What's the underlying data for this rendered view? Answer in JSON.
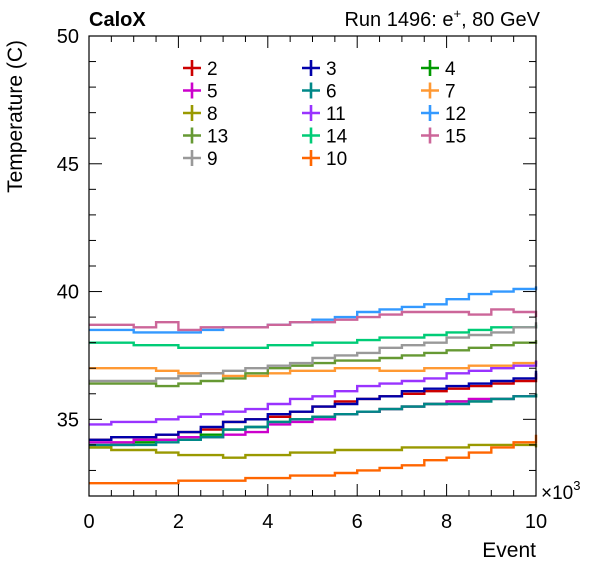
{
  "header": {
    "left": "CaloX",
    "right_prefix": "Run 1496: e",
    "right_sup": "+",
    "right_suffix": ", 80 GeV"
  },
  "chart_data": {
    "type": "line",
    "style": "step",
    "xlabel": "Event",
    "ylabel": "Temperature (C)",
    "x_multiplier": "×10",
    "x_multiplier_exp": "3",
    "xlim": [
      0,
      10
    ],
    "ylim": [
      32,
      50
    ],
    "xticks": [
      0,
      2,
      4,
      6,
      8,
      10
    ],
    "yticks": [
      35,
      40,
      45,
      50
    ],
    "grid": false,
    "legend_position": "top",
    "x": [
      0,
      0.5,
      1,
      1.5,
      2,
      2.5,
      3,
      3.5,
      4,
      4.5,
      5,
      5.5,
      6,
      6.5,
      7,
      7.5,
      8,
      8.5,
      9,
      9.5,
      10
    ],
    "series": [
      {
        "name": "2",
        "color": "#cc0000",
        "values": [
          34.2,
          34.3,
          34.3,
          34.4,
          34.5,
          34.6,
          34.9,
          35.0,
          35.1,
          35.3,
          35.5,
          35.7,
          35.8,
          35.9,
          36.0,
          36.1,
          36.2,
          36.3,
          36.4,
          36.5,
          36.8
        ]
      },
      {
        "name": "3",
        "color": "#0000aa",
        "values": [
          34.2,
          34.3,
          34.3,
          34.4,
          34.5,
          34.7,
          34.9,
          35.0,
          35.2,
          35.3,
          35.5,
          35.6,
          35.8,
          35.9,
          36.1,
          36.2,
          36.3,
          36.4,
          36.5,
          36.6,
          36.9
        ]
      },
      {
        "name": "4",
        "color": "#009900",
        "values": [
          33.9,
          34.0,
          34.1,
          34.2,
          34.3,
          34.4,
          34.6,
          34.7,
          34.9,
          35.0,
          35.1,
          35.2,
          35.3,
          35.4,
          35.5,
          35.6,
          35.7,
          35.7,
          35.8,
          35.9,
          36.0
        ]
      },
      {
        "name": "5",
        "color": "#cc00cc",
        "values": [
          34.1,
          34.1,
          34.2,
          34.2,
          34.3,
          34.3,
          34.4,
          34.5,
          34.8,
          34.9,
          35.0,
          35.2,
          35.3,
          35.4,
          35.5,
          35.6,
          35.7,
          35.8,
          35.8,
          35.9,
          35.9
        ]
      },
      {
        "name": "6",
        "color": "#008888",
        "values": [
          34.0,
          34.0,
          34.0,
          34.1,
          34.2,
          34.3,
          34.6,
          34.7,
          34.9,
          35.0,
          35.1,
          35.2,
          35.3,
          35.4,
          35.5,
          35.6,
          35.6,
          35.7,
          35.8,
          35.9,
          36.0
        ]
      },
      {
        "name": "7",
        "color": "#ff9933",
        "values": [
          37.0,
          37.0,
          37.0,
          36.9,
          36.8,
          36.8,
          36.7,
          36.7,
          36.8,
          36.9,
          36.9,
          37.0,
          37.0,
          36.9,
          36.9,
          37.0,
          37.0,
          37.1,
          37.1,
          37.2,
          37.3
        ]
      },
      {
        "name": "8",
        "color": "#999900",
        "values": [
          33.9,
          33.8,
          33.8,
          33.7,
          33.6,
          33.6,
          33.5,
          33.6,
          33.6,
          33.7,
          33.7,
          33.8,
          33.8,
          33.8,
          33.9,
          33.9,
          33.9,
          34.0,
          34.0,
          34.0,
          33.9
        ]
      },
      {
        "name": "11",
        "color": "#9933ff",
        "values": [
          34.8,
          34.9,
          34.9,
          35.0,
          35.1,
          35.2,
          35.3,
          35.4,
          35.6,
          35.8,
          35.9,
          36.1,
          36.3,
          36.4,
          36.5,
          36.6,
          36.8,
          36.9,
          37.0,
          37.1,
          37.3
        ]
      },
      {
        "name": "12",
        "color": "#3399ff",
        "values": [
          38.5,
          38.5,
          38.4,
          38.4,
          38.4,
          38.5,
          38.6,
          38.6,
          38.7,
          38.8,
          38.9,
          39.0,
          39.2,
          39.3,
          39.4,
          39.5,
          39.7,
          39.9,
          40.0,
          40.1,
          40.2
        ]
      },
      {
        "name": "13",
        "color": "#669933",
        "values": [
          36.4,
          36.4,
          36.4,
          36.3,
          36.4,
          36.5,
          36.6,
          36.8,
          37.0,
          37.1,
          37.2,
          37.3,
          37.3,
          37.4,
          37.5,
          37.6,
          37.7,
          37.8,
          37.9,
          38.0,
          38.1
        ]
      },
      {
        "name": "14",
        "color": "#00cc77",
        "values": [
          38.0,
          38.0,
          37.9,
          37.9,
          37.8,
          37.8,
          37.8,
          37.8,
          37.9,
          37.9,
          38.0,
          38.0,
          38.1,
          38.2,
          38.2,
          38.3,
          38.4,
          38.5,
          38.6,
          38.6,
          38.7
        ]
      },
      {
        "name": "15",
        "color": "#cc6699",
        "values": [
          38.7,
          38.7,
          38.6,
          38.8,
          38.5,
          38.6,
          38.6,
          38.6,
          38.7,
          38.8,
          38.8,
          38.9,
          39.0,
          39.1,
          39.2,
          39.2,
          39.2,
          39.1,
          39.3,
          39.2,
          39.0
        ]
      },
      {
        "name": "9",
        "color": "#999999",
        "values": [
          36.5,
          36.5,
          36.5,
          36.6,
          36.7,
          36.8,
          36.9,
          37.0,
          37.1,
          37.2,
          37.4,
          37.5,
          37.6,
          37.8,
          37.9,
          38.0,
          38.2,
          38.3,
          38.4,
          38.6,
          38.8
        ]
      },
      {
        "name": "10",
        "color": "#ff6600",
        "values": [
          32.5,
          32.5,
          32.5,
          32.5,
          32.6,
          32.6,
          32.6,
          32.7,
          32.7,
          32.8,
          32.8,
          32.9,
          33.0,
          33.1,
          33.2,
          33.4,
          33.5,
          33.7,
          33.9,
          34.1,
          34.4
        ]
      }
    ]
  }
}
